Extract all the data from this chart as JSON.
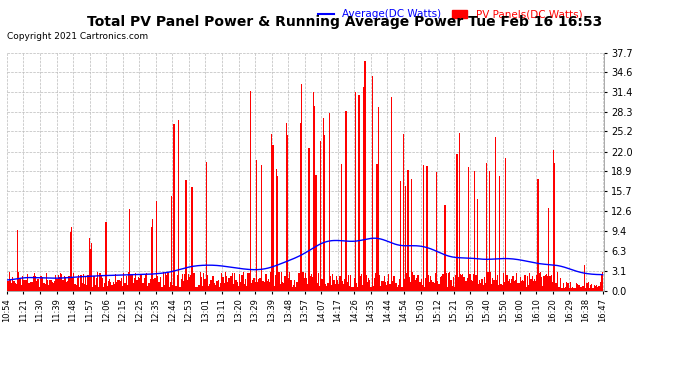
{
  "title": "Total PV Panel Power & Running Average Power Tue Feb 16 16:53",
  "copyright": "Copyright 2021 Cartronics.com",
  "legend_avg": "Average(DC Watts)",
  "legend_pv": "PV Panels(DC Watts)",
  "yticks": [
    0.0,
    3.1,
    6.3,
    9.4,
    12.6,
    15.7,
    18.9,
    22.0,
    25.2,
    28.3,
    31.4,
    34.6,
    37.7
  ],
  "ymax": 37.7,
  "bar_color": "#ff0000",
  "avg_color": "#0000ff",
  "background_color": "#ffffff",
  "grid_color": "#bbbbbb",
  "xtick_labels": [
    "10:54",
    "11:21",
    "11:30",
    "11:39",
    "11:48",
    "11:57",
    "12:06",
    "12:15",
    "12:25",
    "12:35",
    "12:44",
    "12:53",
    "13:01",
    "13:11",
    "13:20",
    "13:29",
    "13:39",
    "13:48",
    "13:57",
    "14:07",
    "14:17",
    "14:26",
    "14:35",
    "14:44",
    "14:54",
    "15:03",
    "15:12",
    "15:21",
    "15:30",
    "15:40",
    "15:50",
    "16:00",
    "16:10",
    "16:20",
    "16:29",
    "16:38",
    "16:47"
  ],
  "num_bars": 500,
  "seed": 7
}
